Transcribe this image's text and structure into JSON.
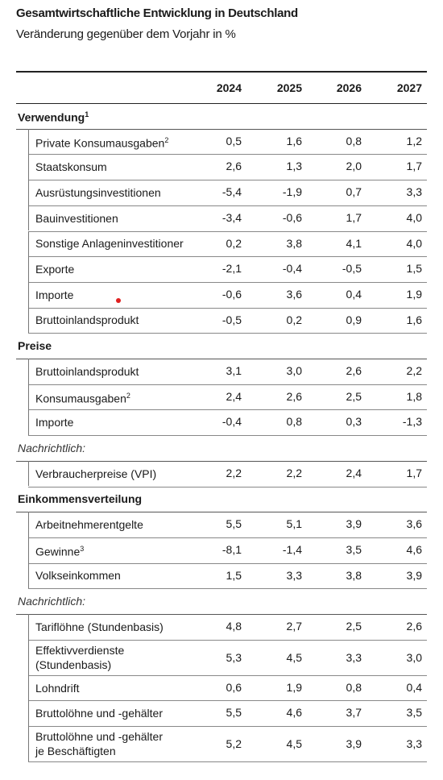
{
  "header": {
    "title": "Gesamtwirtschaftliche Entwicklung in Deutschland",
    "subtitle": "Veränderung gegenüber dem Vorjahr in %"
  },
  "table": {
    "columns": [
      "2024",
      "2025",
      "2026",
      "2027"
    ],
    "sections": [
      {
        "heading": "Verwendung",
        "note": "1",
        "rows": [
          {
            "label": "Private Konsumausgaben",
            "note": "2",
            "values": [
              "0,5",
              "1,6",
              "0,8",
              "1,2"
            ]
          },
          {
            "label": "Staatskonsum",
            "values": [
              "2,6",
              "1,3",
              "2,0",
              "1,7"
            ]
          },
          {
            "label": "Ausrüstungsinvestitionen",
            "values": [
              "-5,4",
              "-1,9",
              "0,7",
              "3,3"
            ]
          },
          {
            "label": "Bauinvestitionen",
            "values": [
              "-3,4",
              "-0,6",
              "1,7",
              "4,0"
            ]
          },
          {
            "label": "Sonstige Anlageninvestitioner",
            "values": [
              "0,2",
              "3,8",
              "4,1",
              "4,0"
            ]
          },
          {
            "label": "Exporte",
            "values": [
              "-2,1",
              "-0,4",
              "-0,5",
              "1,5"
            ]
          },
          {
            "label": "Importe",
            "values": [
              "-0,6",
              "3,6",
              "0,4",
              "1,9"
            ]
          },
          {
            "label": "Bruttoinlandsprodukt",
            "values": [
              "-0,5",
              "0,2",
              "0,9",
              "1,6"
            ]
          }
        ]
      },
      {
        "heading": "Preise",
        "rows": [
          {
            "label": "Bruttoinlandsprodukt",
            "values": [
              "3,1",
              "3,0",
              "2,6",
              "2,2"
            ]
          },
          {
            "label": "Konsumausgaben",
            "note": "2",
            "values": [
              "2,4",
              "2,6",
              "2,5",
              "1,8"
            ]
          },
          {
            "label": "Importe",
            "values": [
              "-0,4",
              "0,8",
              "0,3",
              "-1,3"
            ]
          }
        ]
      },
      {
        "remark": "Nachrichtlich:",
        "rows": [
          {
            "label": "Verbraucherpreise (VPI)",
            "values": [
              "2,2",
              "2,2",
              "2,4",
              "1,7"
            ]
          }
        ]
      },
      {
        "heading": "Einkommensverteilung",
        "rows": [
          {
            "label": "Arbeitnehmerentgelte",
            "values": [
              "5,5",
              "5,1",
              "3,9",
              "3,6"
            ]
          },
          {
            "label": "Gewinne",
            "note": "3",
            "values": [
              "-8,1",
              "-1,4",
              "3,5",
              "4,6"
            ]
          },
          {
            "label": "Volkseinkommen",
            "values": [
              "1,5",
              "3,3",
              "3,8",
              "3,9"
            ]
          }
        ]
      },
      {
        "remark": "Nachrichtlich:",
        "rows": [
          {
            "label": "Tariflöhne (Stundenbasis)",
            "values": [
              "4,8",
              "2,7",
              "2,5",
              "2,6"
            ]
          },
          {
            "label": [
              "Effektivverdienste",
              "(Stundenbasis)"
            ],
            "values": [
              "5,3",
              "4,5",
              "3,3",
              "3,0"
            ]
          },
          {
            "label": "Lohndrift",
            "values": [
              "0,6",
              "1,9",
              "0,8",
              "0,4"
            ]
          },
          {
            "label": "Bruttolöhne und -gehälter",
            "values": [
              "5,5",
              "4,6",
              "3,7",
              "3,5"
            ]
          },
          {
            "label": [
              "Bruttolöhne und -gehälter",
              "je Beschäftigten"
            ],
            "values": [
              "5,2",
              "4,5",
              "3,9",
              "3,3"
            ]
          }
        ]
      }
    ]
  }
}
